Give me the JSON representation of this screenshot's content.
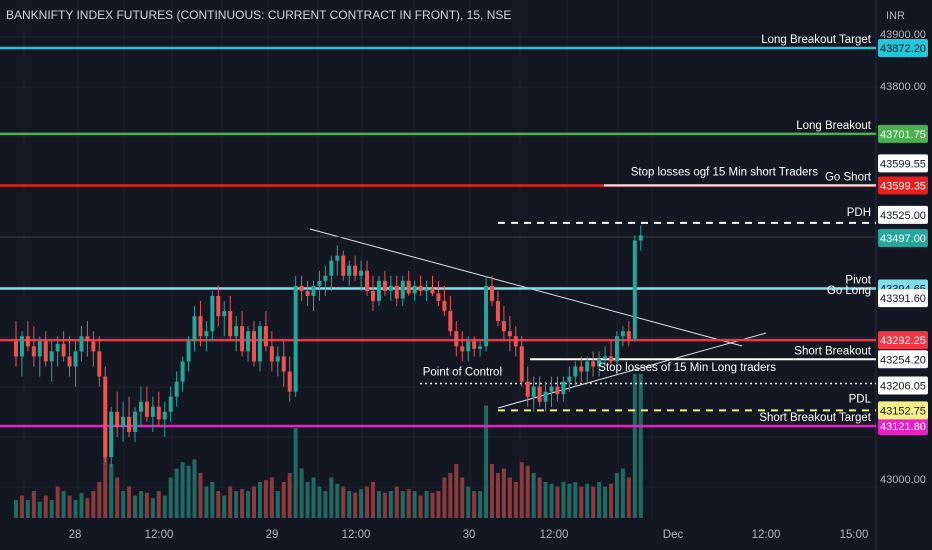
{
  "header": {
    "title": "BANKNIFTY INDEX FUTURES (CONTINUOUS: CURRENT CONTRACT IN FRONT), 15, NSE",
    "currency": "INR"
  },
  "colors": {
    "background": "#131722",
    "bull": "#26a69a",
    "bear": "#ef5350",
    "bull_volume": "#1f6b63",
    "bear_volume": "#8a3a3c",
    "grid": "#1e2230",
    "axis_text": "#b2b5be"
  },
  "chart_data": {
    "type": "candlestick",
    "title": "BANKNIFTY INDEX FUTURES (CONTINUOUS: CURRENT CONTRACT IN FRONT), 15, NSE",
    "ylim": [
      42950,
      43920
    ],
    "y_ticks": [
      "43900.00",
      "43800.00",
      "43000.00"
    ],
    "x_ticks": [
      "28",
      "12:00",
      "29",
      "12:00",
      "30",
      "12:00",
      "Dec",
      "12:00",
      "15:00"
    ],
    "grid": true,
    "price_levels": [
      {
        "label": "Long Breakout Target",
        "value": "43872.20",
        "price": 43872.2,
        "color": "#26c6da",
        "label_side": "right"
      },
      {
        "label": "Long Breakout",
        "value": "43701.75",
        "price": 43701.75,
        "color": "#4caf50",
        "label_side": "right"
      },
      {
        "label": "Go Short",
        "value": "43599.35",
        "price": 43599.35,
        "color": "#e91e1e",
        "label_side": "right"
      },
      {
        "label": "Pivot",
        "value": "43394.65",
        "price": 43394.65,
        "color": "#80deea",
        "label_side": "right"
      },
      {
        "label": "",
        "value": "43292.25",
        "price": 43292.25,
        "color": "#f23645",
        "label_side": "right"
      },
      {
        "label": "Short Breakout Target",
        "value": "43121.80",
        "price": 43121.8,
        "color": "#e91ec9",
        "label_side": "right"
      }
    ],
    "segment_levels": [
      {
        "label": "Stop losses ogf 15 Min short Traders",
        "value": "43599.55",
        "price": 43599.55
      },
      {
        "label": "Go Long",
        "value": "43391.60",
        "price": 43391.6
      },
      {
        "label": "Short Breakout",
        "value": "43254.20",
        "price": 43254.2
      },
      {
        "label": "Point of Control",
        "value": "43206.05",
        "price": 43206.05
      },
      {
        "label": "PDH",
        "value": "43525.00",
        "price": 43525.0
      },
      {
        "label": "PDL",
        "value": "43152.75",
        "price": 43152.75
      }
    ],
    "last_price": {
      "value": "43497.00",
      "price": 43497.0
    },
    "annotations": [
      "Stop losses of 15 Min Long traders"
    ],
    "candles": [
      [
        43290,
        43330,
        43240,
        43260
      ],
      [
        43260,
        43310,
        43220,
        43300
      ],
      [
        43300,
        43330,
        43270,
        43280
      ],
      [
        43280,
        43320,
        43240,
        43260
      ],
      [
        43260,
        43300,
        43220,
        43290
      ],
      [
        43290,
        43310,
        43240,
        43250
      ],
      [
        43250,
        43290,
        43210,
        43270
      ],
      [
        43270,
        43300,
        43240,
        43285
      ],
      [
        43285,
        43310,
        43250,
        43260
      ],
      [
        43260,
        43300,
        43220,
        43240
      ],
      [
        43240,
        43290,
        43200,
        43270
      ],
      [
        43270,
        43320,
        43250,
        43300
      ],
      [
        43300,
        43330,
        43260,
        43290
      ],
      [
        43290,
        43310,
        43240,
        43270
      ],
      [
        43270,
        43300,
        43200,
        43220
      ],
      [
        43220,
        43240,
        43050,
        43060
      ],
      [
        43060,
        43160,
        43040,
        43150
      ],
      [
        43150,
        43190,
        43100,
        43120
      ],
      [
        43120,
        43170,
        43090,
        43140
      ],
      [
        43140,
        43180,
        43100,
        43110
      ],
      [
        43110,
        43160,
        43090,
        43150
      ],
      [
        43150,
        43200,
        43120,
        43170
      ],
      [
        43170,
        43200,
        43130,
        43140
      ],
      [
        43140,
        43180,
        43110,
        43160
      ],
      [
        43160,
        43190,
        43120,
        43135
      ],
      [
        43135,
        43170,
        43100,
        43150
      ],
      [
        43150,
        43200,
        43130,
        43180
      ],
      [
        43180,
        43230,
        43160,
        43210
      ],
      [
        43210,
        43260,
        43190,
        43250
      ],
      [
        43250,
        43300,
        43230,
        43290
      ],
      [
        43290,
        43360,
        43270,
        43340
      ],
      [
        43340,
        43370,
        43280,
        43300
      ],
      [
        43300,
        43330,
        43270,
        43310
      ],
      [
        43310,
        43390,
        43290,
        43380
      ],
      [
        43380,
        43400,
        43320,
        43340
      ],
      [
        43340,
        43370,
        43300,
        43350
      ],
      [
        43350,
        43380,
        43290,
        43300
      ],
      [
        43300,
        43340,
        43270,
        43320
      ],
      [
        43320,
        43350,
        43260,
        43270
      ],
      [
        43270,
        43320,
        43250,
        43310
      ],
      [
        43310,
        43330,
        43240,
        43250
      ],
      [
        43250,
        43330,
        43230,
        43320
      ],
      [
        43320,
        43350,
        43270,
        43280
      ],
      [
        43280,
        43310,
        43230,
        43250
      ],
      [
        43250,
        43280,
        43220,
        43260
      ],
      [
        43260,
        43290,
        43200,
        43230
      ],
      [
        43230,
        43260,
        43170,
        43190
      ],
      [
        43190,
        43420,
        43180,
        43400
      ],
      [
        43400,
        43420,
        43370,
        43390
      ],
      [
        43390,
        43410,
        43360,
        43380
      ],
      [
        43380,
        43410,
        43350,
        43400
      ],
      [
        43400,
        43430,
        43370,
        43410
      ],
      [
        43410,
        43440,
        43380,
        43420
      ],
      [
        43420,
        43460,
        43390,
        43450
      ],
      [
        43450,
        43480,
        43420,
        43460
      ],
      [
        43460,
        43470,
        43410,
        43420
      ],
      [
        43420,
        43450,
        43400,
        43440
      ],
      [
        43440,
        43460,
        43410,
        43420
      ],
      [
        43420,
        43450,
        43390,
        43430
      ],
      [
        43430,
        43450,
        43380,
        43390
      ],
      [
        43390,
        43420,
        43350,
        43370
      ],
      [
        43370,
        43420,
        43360,
        43410
      ],
      [
        43410,
        43430,
        43380,
        43390
      ],
      [
        43390,
        43420,
        43370,
        43400
      ],
      [
        43400,
        43420,
        43360,
        43375
      ],
      [
        43375,
        43420,
        43360,
        43410
      ],
      [
        43410,
        43430,
        43380,
        43385
      ],
      [
        43385,
        43410,
        43370,
        43400
      ],
      [
        43400,
        43420,
        43380,
        43390
      ],
      [
        43390,
        43410,
        43370,
        43395
      ],
      [
        43395,
        43420,
        43380,
        43385
      ],
      [
        43385,
        43410,
        43360,
        43370
      ],
      [
        43370,
        43400,
        43340,
        43350
      ],
      [
        43350,
        43380,
        43300,
        43310
      ],
      [
        43310,
        43330,
        43260,
        43280
      ],
      [
        43280,
        43310,
        43250,
        43270
      ],
      [
        43270,
        43300,
        43250,
        43290
      ],
      [
        43290,
        43300,
        43260,
        43275
      ],
      [
        43275,
        43290,
        43260,
        43280
      ],
      [
        43280,
        43420,
        43270,
        43400
      ],
      [
        43400,
        43420,
        43360,
        43370
      ],
      [
        43370,
        43390,
        43320,
        43330
      ],
      [
        43330,
        43360,
        43290,
        43310
      ],
      [
        43310,
        43340,
        43270,
        43300
      ],
      [
        43300,
        43320,
        43260,
        43280
      ],
      [
        43280,
        43300,
        43200,
        43210
      ],
      [
        43210,
        43240,
        43160,
        43180
      ],
      [
        43180,
        43220,
        43150,
        43200
      ],
      [
        43200,
        43220,
        43160,
        43170
      ],
      [
        43170,
        43210,
        43150,
        43190
      ],
      [
        43190,
        43220,
        43160,
        43200
      ],
      [
        43200,
        43220,
        43170,
        43185
      ],
      [
        43185,
        43220,
        43170,
        43210
      ],
      [
        43210,
        43240,
        43190,
        43220
      ],
      [
        43220,
        43250,
        43200,
        43240
      ],
      [
        43240,
        43260,
        43210,
        43230
      ],
      [
        43230,
        43260,
        43210,
        43250
      ],
      [
        43250,
        43270,
        43220,
        43240
      ],
      [
        43240,
        43270,
        43220,
        43255
      ],
      [
        43255,
        43280,
        43240,
        43260
      ],
      [
        43260,
        43290,
        43240,
        43250
      ],
      [
        43250,
        43310,
        43240,
        43300
      ],
      [
        43300,
        43320,
        43280,
        43310
      ],
      [
        43310,
        43330,
        43280,
        43295
      ],
      [
        43295,
        43500,
        43290,
        43490
      ],
      [
        43490,
        43520,
        43470,
        43500
      ]
    ],
    "volumes": [
      [
        0.2,
        1
      ],
      [
        0.25,
        0
      ],
      [
        0.2,
        1
      ],
      [
        0.3,
        0
      ],
      [
        0.18,
        1
      ],
      [
        0.25,
        0
      ],
      [
        0.2,
        1
      ],
      [
        0.35,
        0
      ],
      [
        0.3,
        1
      ],
      [
        0.25,
        0
      ],
      [
        0.2,
        1
      ],
      [
        0.28,
        1
      ],
      [
        0.22,
        0
      ],
      [
        0.3,
        0
      ],
      [
        0.4,
        0
      ],
      [
        1.0,
        0
      ],
      [
        0.6,
        1
      ],
      [
        0.45,
        0
      ],
      [
        0.3,
        1
      ],
      [
        0.35,
        0
      ],
      [
        0.25,
        1
      ],
      [
        0.3,
        1
      ],
      [
        0.28,
        0
      ],
      [
        0.22,
        1
      ],
      [
        0.3,
        0
      ],
      [
        0.25,
        1
      ],
      [
        0.45,
        1
      ],
      [
        0.55,
        1
      ],
      [
        0.62,
        1
      ],
      [
        0.58,
        1
      ],
      [
        0.65,
        1
      ],
      [
        0.5,
        0
      ],
      [
        0.35,
        1
      ],
      [
        0.4,
        1
      ],
      [
        0.3,
        0
      ],
      [
        0.25,
        1
      ],
      [
        0.35,
        0
      ],
      [
        0.3,
        1
      ],
      [
        0.32,
        0
      ],
      [
        0.3,
        1
      ],
      [
        0.35,
        0
      ],
      [
        0.4,
        1
      ],
      [
        0.42,
        0
      ],
      [
        0.45,
        0
      ],
      [
        0.3,
        1
      ],
      [
        0.4,
        0
      ],
      [
        0.5,
        0
      ],
      [
        1.0,
        1
      ],
      [
        0.55,
        1
      ],
      [
        0.4,
        1
      ],
      [
        0.45,
        1
      ],
      [
        0.35,
        1
      ],
      [
        0.3,
        1
      ],
      [
        0.45,
        1
      ],
      [
        0.38,
        1
      ],
      [
        0.35,
        0
      ],
      [
        0.3,
        1
      ],
      [
        0.28,
        0
      ],
      [
        0.32,
        1
      ],
      [
        0.35,
        0
      ],
      [
        0.4,
        0
      ],
      [
        0.3,
        1
      ],
      [
        0.28,
        0
      ],
      [
        0.3,
        1
      ],
      [
        0.35,
        0
      ],
      [
        0.3,
        1
      ],
      [
        0.32,
        0
      ],
      [
        0.3,
        1
      ],
      [
        0.25,
        0
      ],
      [
        0.3,
        1
      ],
      [
        0.28,
        0
      ],
      [
        0.3,
        0
      ],
      [
        0.45,
        0
      ],
      [
        0.5,
        0
      ],
      [
        0.6,
        0
      ],
      [
        0.45,
        0
      ],
      [
        0.35,
        1
      ],
      [
        0.3,
        0
      ],
      [
        0.3,
        1
      ],
      [
        1.25,
        1
      ],
      [
        0.6,
        0
      ],
      [
        0.5,
        0
      ],
      [
        0.55,
        0
      ],
      [
        0.45,
        0
      ],
      [
        0.4,
        0
      ],
      [
        0.62,
        0
      ],
      [
        0.58,
        0
      ],
      [
        0.5,
        1
      ],
      [
        0.45,
        0
      ],
      [
        0.4,
        1
      ],
      [
        0.38,
        1
      ],
      [
        0.35,
        0
      ],
      [
        0.4,
        1
      ],
      [
        0.38,
        1
      ],
      [
        0.4,
        1
      ],
      [
        0.35,
        0
      ],
      [
        0.38,
        1
      ],
      [
        0.35,
        0
      ],
      [
        0.4,
        1
      ],
      [
        0.35,
        1
      ],
      [
        0.38,
        0
      ],
      [
        0.5,
        1
      ],
      [
        0.55,
        1
      ],
      [
        0.45,
        0
      ],
      [
        1.6,
        1
      ],
      [
        1.6,
        1
      ]
    ]
  }
}
